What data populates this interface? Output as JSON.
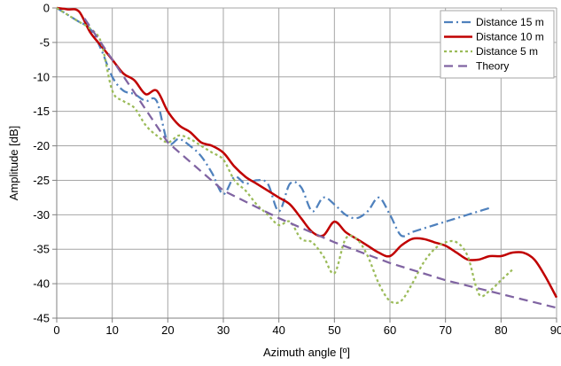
{
  "chart_data": {
    "type": "line",
    "title": "",
    "xlabel": "Azimuth angle [º]",
    "ylabel": "Amplitude [dB]",
    "xlim": [
      0,
      90
    ],
    "ylim": [
      -45,
      0
    ],
    "xticks": [
      0,
      10,
      20,
      30,
      40,
      50,
      60,
      70,
      80,
      90
    ],
    "yticks": [
      0,
      -5,
      -10,
      -15,
      -20,
      -25,
      -30,
      -35,
      -40,
      -45
    ],
    "grid": true,
    "legend_position": "top-right",
    "series": [
      {
        "name": "Distance 15 m",
        "color": "#4f81bd",
        "dash": "dash-dot",
        "x": [
          0,
          2,
          4,
          6,
          8,
          10,
          12,
          14,
          16,
          18,
          20,
          22,
          24,
          26,
          28,
          30,
          32,
          34,
          36,
          38,
          40,
          42,
          44,
          46,
          48,
          50,
          52,
          54,
          56,
          58,
          60,
          62,
          64,
          66,
          68,
          70,
          72,
          74,
          76,
          78
        ],
        "y": [
          0,
          -1,
          -2,
          -3,
          -6,
          -10,
          -12,
          -12.5,
          -13.5,
          -13.5,
          -19.5,
          -19,
          -20,
          -21.5,
          -24,
          -27,
          -24.5,
          -25.5,
          -25,
          -25.5,
          -29.5,
          -25.5,
          -26,
          -29.5,
          -27.5,
          -28.5,
          -30,
          -30.5,
          -29.5,
          -27.5,
          -30,
          -33,
          -32.5,
          -32,
          -31.5,
          -31,
          -30.5,
          -30,
          -29.5,
          -29
        ]
      },
      {
        "name": "Distance 10 m",
        "color": "#c00000",
        "dash": "solid",
        "x": [
          0,
          2,
          4,
          6,
          8,
          10,
          12,
          14,
          16,
          18,
          20,
          22,
          24,
          26,
          28,
          30,
          32,
          34,
          36,
          38,
          40,
          42,
          44,
          46,
          48,
          50,
          52,
          54,
          56,
          58,
          60,
          62,
          64,
          66,
          68,
          70,
          72,
          74,
          76,
          78,
          80,
          82,
          84,
          86,
          88,
          90
        ],
        "y": [
          0,
          -0.2,
          -0.5,
          -3.5,
          -5.5,
          -7.5,
          -9.5,
          -10.5,
          -12.5,
          -12,
          -15,
          -17,
          -18,
          -19.5,
          -20,
          -21,
          -23,
          -24.5,
          -25.5,
          -26.5,
          -27.5,
          -28.5,
          -30.5,
          -32.5,
          -33,
          -31,
          -32.5,
          -33.5,
          -34.5,
          -35.5,
          -36,
          -34.5,
          -33.5,
          -33.5,
          -34,
          -34.5,
          -35.5,
          -36.5,
          -36.5,
          -36,
          -36,
          -35.5,
          -35.5,
          -36.5,
          -39,
          -42
        ]
      },
      {
        "name": "Distance 5 m",
        "color": "#9bbb59",
        "dash": "dotted",
        "x": [
          0,
          2,
          4,
          6,
          8,
          10,
          12,
          14,
          16,
          18,
          20,
          22,
          24,
          26,
          28,
          30,
          32,
          34,
          36,
          38,
          40,
          42,
          44,
          46,
          48,
          50,
          52,
          54,
          56,
          58,
          60,
          62,
          64,
          66,
          68,
          70,
          72,
          74,
          76,
          78,
          80,
          82
        ],
        "y": [
          0,
          -1,
          -2,
          -3,
          -5,
          -12,
          -13.5,
          -14.5,
          -17,
          -18.5,
          -19.5,
          -18.5,
          -19,
          -20,
          -21,
          -22,
          -25,
          -26.5,
          -28.5,
          -30,
          -31.5,
          -31,
          -33.5,
          -34,
          -36,
          -38.5,
          -33.5,
          -33.5,
          -36,
          -40,
          -42.5,
          -42.5,
          -40,
          -37,
          -35,
          -34,
          -34,
          -36,
          -41.5,
          -41,
          -39.5,
          -38
        ]
      },
      {
        "name": "Theory",
        "color": "#8064a2",
        "dash": "dashed",
        "x": [
          5,
          10,
          20,
          30,
          40,
          50,
          60,
          70,
          80,
          90
        ],
        "y": [
          -1.5,
          -7.5,
          -19.5,
          -26.5,
          -30.5,
          -34,
          -37,
          -39.5,
          -41.5,
          -43.5
        ]
      }
    ]
  }
}
